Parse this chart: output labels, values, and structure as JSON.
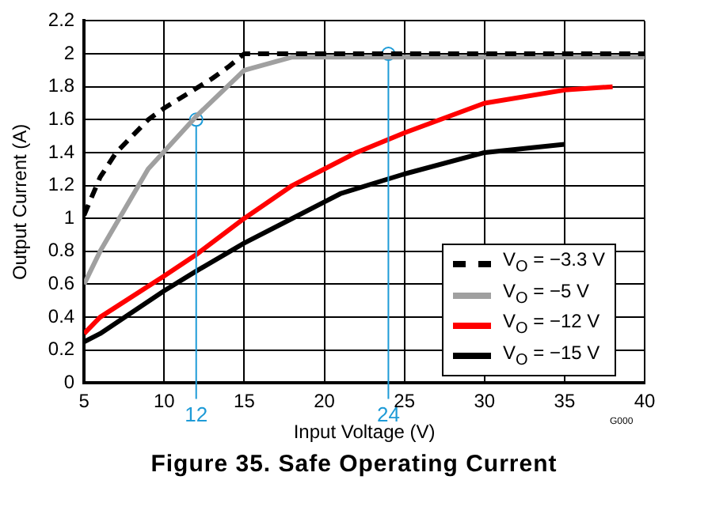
{
  "chart_data": {
    "type": "line",
    "title": "Figure 35.  Safe Operating Current",
    "xlabel": "Input Voltage (V)",
    "ylabel": "Output Current (A)",
    "xlim": [
      5,
      40
    ],
    "xticks": [
      5,
      10,
      15,
      20,
      25,
      30,
      35,
      40
    ],
    "ylim": [
      0,
      2.2
    ],
    "yticks": [
      0,
      0.2,
      0.4,
      0.6,
      0.8,
      1,
      1.2,
      1.4,
      1.6,
      1.8,
      2,
      2.2
    ],
    "grid": true,
    "legend": "bottom right",
    "marker": "none",
    "series": [
      {
        "name": "V$_{O}$ = −3.3 V",
        "color": "#000000",
        "line_style": "dashed",
        "x": [
          5,
          6,
          7,
          8,
          9,
          10,
          11,
          12,
          13,
          14,
          15,
          18,
          40
        ],
        "values": [
          1.02,
          1.25,
          1.4,
          1.5,
          1.6,
          1.67,
          1.73,
          1.79,
          1.85,
          1.92,
          2.0,
          2.0,
          2.0
        ]
      },
      {
        "name": "V$_{O}$ = −5 V",
        "color": "#a0a0a0",
        "line_style": "solid",
        "x": [
          5,
          6,
          9,
          12,
          15,
          18,
          40
        ],
        "values": [
          0.6,
          0.8,
          1.3,
          1.62,
          1.9,
          1.98,
          1.98
        ]
      },
      {
        "name": "V$_{O}$ = −12 V",
        "color": "#ff0000",
        "line_style": "solid",
        "x": [
          5,
          6,
          10,
          12,
          15,
          18,
          20,
          22,
          25,
          30,
          35,
          38
        ],
        "values": [
          0.3,
          0.4,
          0.65,
          0.78,
          1.0,
          1.2,
          1.3,
          1.4,
          1.52,
          1.7,
          1.78,
          1.8
        ]
      },
      {
        "name": "V$_{O}$ = −15 V",
        "color": "#000000",
        "line_style": "solid",
        "x": [
          5,
          6,
          10,
          12,
          15,
          18,
          20,
          21,
          25,
          30,
          35
        ],
        "values": [
          0.25,
          0.3,
          0.56,
          0.68,
          0.85,
          1.0,
          1.1,
          1.15,
          1.27,
          1.4,
          1.45
        ]
      },
      {
        "type": "scatter",
        "color": "#1e9bd7",
        "marker": "circle",
        "x": [
          12,
          24
        ],
        "values": [
          1.6,
          2.0
        ]
      }
    ],
    "ref_lines": [
      {
        "axis": "x",
        "value": 12,
        "label": "12",
        "color": "#1e9bd7"
      },
      {
        "axis": "x",
        "value": 24,
        "label": "24",
        "color": "#1e9bd7"
      }
    ],
    "annotations": [
      "G000"
    ]
  }
}
